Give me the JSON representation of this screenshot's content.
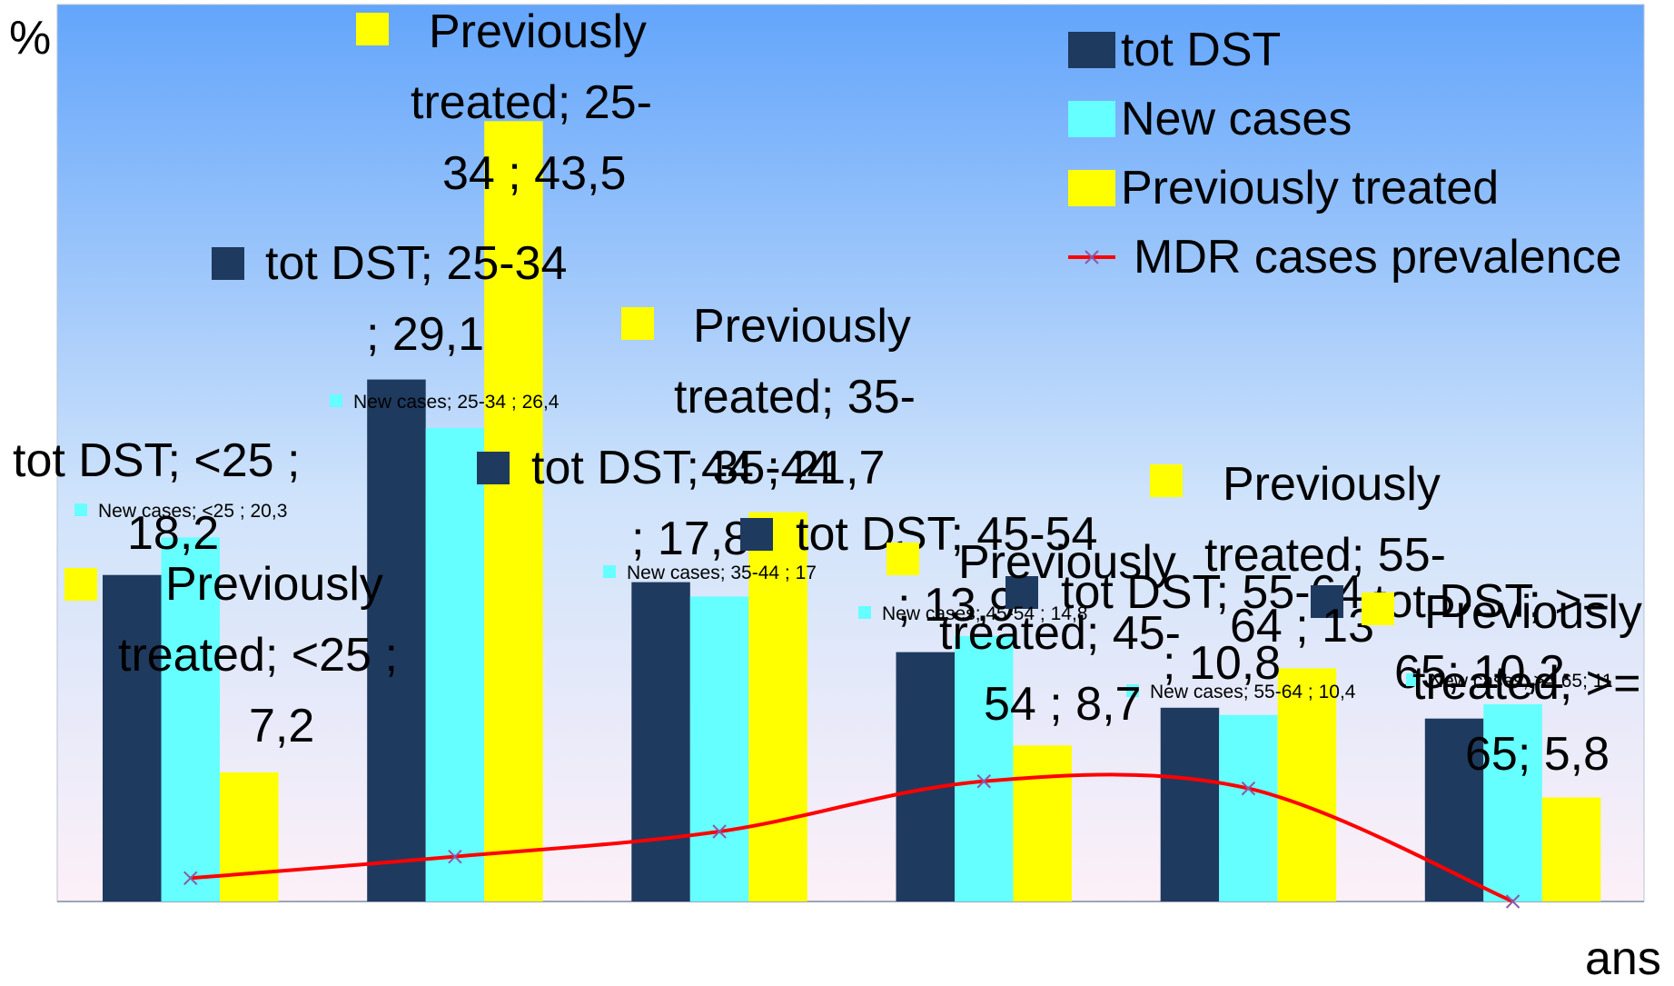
{
  "chart_data": {
    "type": "bar",
    "ylabel": "%",
    "xlabel": "ans",
    "categories": [
      "<25",
      "25-34",
      "35-44",
      "45-54",
      "55-64",
      ">= 65"
    ],
    "ylim": [
      0,
      50
    ],
    "grid": false,
    "legend": "top-right",
    "series": [
      {
        "name": "tot DST",
        "type": "bar",
        "color": "#1f3a5f",
        "values": [
          18.2,
          29.1,
          17.8,
          13.9,
          10.8,
          10.2
        ]
      },
      {
        "name": "New cases",
        "type": "bar",
        "color": "#66ffff",
        "values": [
          20.3,
          26.4,
          17,
          14.8,
          10.4,
          11
        ]
      },
      {
        "name": "Previously treated",
        "type": "bar",
        "color": "#ffff00",
        "values": [
          7.2,
          43.5,
          21.7,
          8.7,
          13,
          5.8
        ]
      },
      {
        "name": "MDR cases prevalence",
        "type": "line",
        "color": "#ff0000",
        "values": [
          1.3,
          2.5,
          3.9,
          6.7,
          6.3,
          0
        ]
      }
    ],
    "data_labels": {
      "tot DST": [
        "tot DST; <25  ;",
        "18,2",
        "tot DST; 25-34",
        "; 29,1",
        "tot DST; 35-44",
        "; 17,8",
        "tot DST; 45-54",
        "; 13,9",
        "tot DST; 55-64",
        "; 10,8",
        "tot DST; >=",
        "65; 10,2"
      ],
      "New cases": [
        "New cases; <25  ; 20,3",
        "New cases; 25-34  ; 26,4",
        "New cases; 35-44  ; 17",
        "New cases; 45-54  ; 14,8",
        "New cases; 55-64  ; 10,4",
        "New cases; >= 65; 11"
      ],
      "Previously treated": [
        "Previously",
        "treated; <25  ;",
        "7,2",
        "Previously",
        "treated; 25-",
        "34  ; 43,5",
        "Previously",
        "treated; 35-",
        "44  ; 21,7",
        "Previously",
        "treated; 45-",
        "54  ; 8,7",
        "Previously",
        "treated; 55-",
        "64  ; 13",
        "Previously",
        "treated; >=",
        "65; 5,8"
      ]
    }
  }
}
